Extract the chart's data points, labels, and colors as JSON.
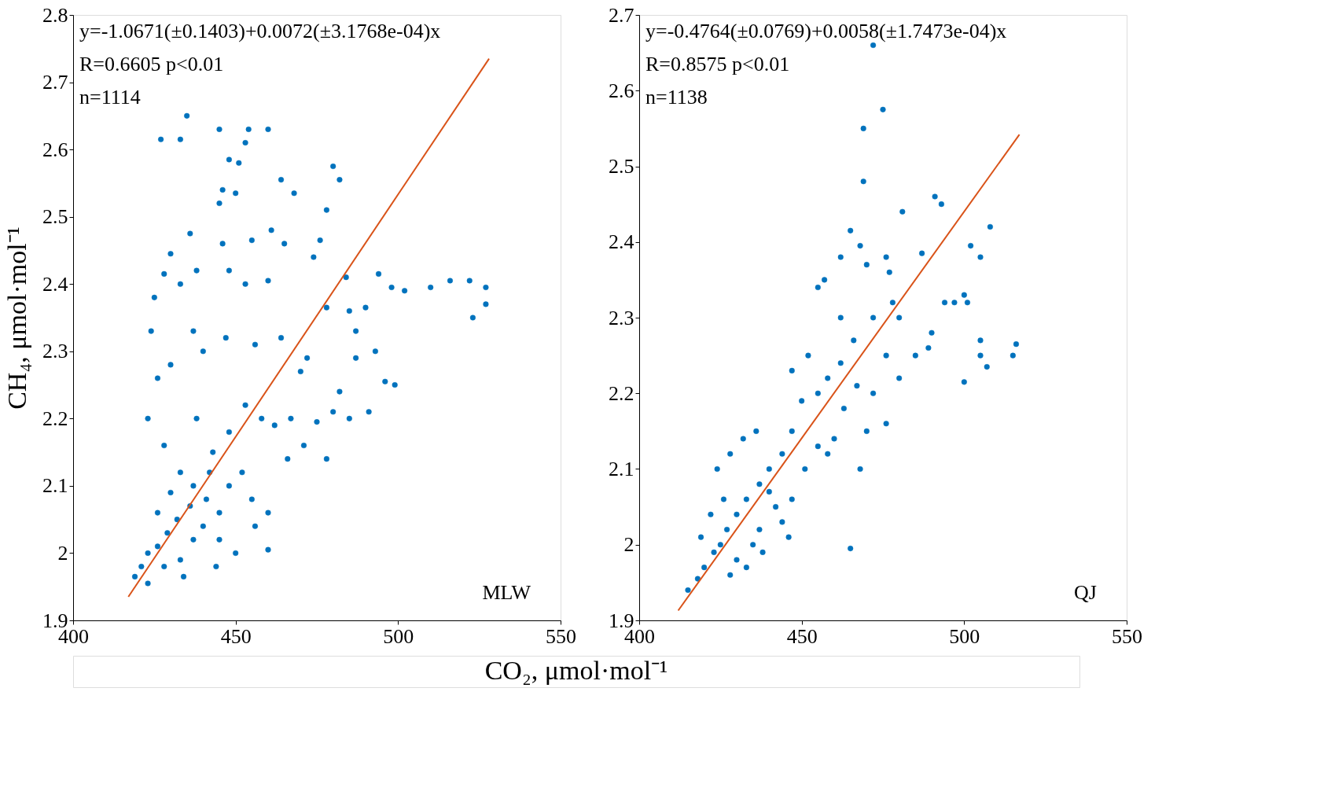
{
  "chart_data": [
    {
      "type": "scatter",
      "xlabel": "CO₂, μmol·mol⁻¹",
      "ylabel": "CH₄, μmol·mol⁻¹",
      "xlim": [
        400,
        550
      ],
      "ylim": [
        1.9,
        2.8
      ],
      "xticks": [
        400,
        450,
        500,
        550
      ],
      "yticks": [
        1.9,
        2,
        2.1,
        2.2,
        2.3,
        2.4,
        2.5,
        2.6,
        2.7,
        2.8
      ],
      "grid": false,
      "marker": "circle",
      "annotations": [
        "y=-1.0671(±0.1403)+0.0072(±3.1768e-04)x",
        "R=0.6605 p<0.01",
        "n=1114",
        "MLW"
      ],
      "series": [
        {
          "color": "#0072bd",
          "x": [
            435,
            427,
            433,
            445,
            454,
            460,
            448,
            451,
            453,
            480,
            482,
            464,
            446,
            450,
            445,
            468,
            478,
            436,
            430,
            446,
            455,
            461,
            465,
            428,
            438,
            448,
            425,
            433,
            453,
            460,
            474,
            476,
            484,
            494,
            498,
            502,
            510,
            516,
            522,
            527,
            523,
            527,
            478,
            485,
            490,
            487,
            493,
            496,
            499,
            491,
            485,
            480,
            478,
            471,
            466,
            470,
            472,
            464,
            456,
            447,
            440,
            437,
            430,
            426,
            424,
            423,
            428,
            433,
            438,
            443,
            448,
            453,
            458,
            462,
            467,
            475,
            482,
            487,
            448,
            452,
            455,
            460,
            445,
            440,
            436,
            432,
            429,
            426,
            423,
            421,
            419,
            423,
            428,
            433,
            437,
            441,
            445,
            450,
            444,
            434,
            456,
            460,
            437,
            442,
            430,
            426
          ],
          "values": [
            2.65,
            2.615,
            2.615,
            2.63,
            2.63,
            2.63,
            2.585,
            2.58,
            2.61,
            2.575,
            2.555,
            2.555,
            2.54,
            2.535,
            2.52,
            2.535,
            2.51,
            2.475,
            2.445,
            2.46,
            2.465,
            2.48,
            2.46,
            2.415,
            2.42,
            2.42,
            2.38,
            2.4,
            2.4,
            2.405,
            2.44,
            2.465,
            2.41,
            2.415,
            2.395,
            2.39,
            2.395,
            2.405,
            2.405,
            2.395,
            2.35,
            2.37,
            2.365,
            2.36,
            2.365,
            2.33,
            2.3,
            2.255,
            2.25,
            2.21,
            2.2,
            2.21,
            2.14,
            2.16,
            2.14,
            2.27,
            2.29,
            2.32,
            2.31,
            2.32,
            2.3,
            2.33,
            2.28,
            2.26,
            2.33,
            2.2,
            2.16,
            2.12,
            2.2,
            2.15,
            2.18,
            2.22,
            2.2,
            2.19,
            2.2,
            2.195,
            2.24,
            2.29,
            2.1,
            2.12,
            2.08,
            2.06,
            2.06,
            2.04,
            2.07,
            2.05,
            2.03,
            2.01,
            2.0,
            1.98,
            1.965,
            1.955,
            1.98,
            1.99,
            2.02,
            2.08,
            2.02,
            2.0,
            1.98,
            1.965,
            2.04,
            2.005,
            2.1,
            2.12,
            2.09,
            2.06
          ]
        },
        {
          "type": "line",
          "marker": "none",
          "color": "#d95319",
          "x": [
            417,
            528
          ],
          "values": [
            1.935,
            2.735
          ]
        }
      ]
    },
    {
      "type": "scatter",
      "xlim": [
        400,
        550
      ],
      "ylim": [
        1.9,
        2.7
      ],
      "xticks": [
        400,
        450,
        500,
        550
      ],
      "yticks": [
        1.9,
        2,
        2.1,
        2.2,
        2.3,
        2.4,
        2.5,
        2.6,
        2.7
      ],
      "grid": false,
      "marker": "circle",
      "annotations": [
        "y=-0.4764(±0.0769)+0.0058(±1.7473e-04)x",
        "R=0.8575 p<0.01",
        "n=1138",
        "QJ"
      ],
      "series": [
        {
          "color": "#0072bd",
          "x": [
            465,
            475,
            469,
            469,
            472,
            465,
            468,
            470,
            462,
            457,
            455,
            481,
            476,
            477,
            487,
            491,
            493,
            502,
            508,
            505,
            500,
            497,
            501,
            505,
            507,
            515,
            516,
            505,
            500,
            494,
            490,
            489,
            485,
            480,
            476,
            470,
            468,
            472,
            476,
            480,
            478,
            472,
            466,
            462,
            458,
            455,
            450,
            447,
            444,
            447,
            452,
            440,
            437,
            433,
            430,
            427,
            425,
            423,
            420,
            418,
            415,
            428,
            432,
            436,
            424,
            440,
            444,
            446,
            438,
            433,
            428,
            422,
            426,
            435,
            442,
            451,
            455,
            460,
            463,
            467,
            458,
            447,
            437,
            430,
            419,
            462
          ],
          "values": [
            1.995,
            2.575,
            2.55,
            2.48,
            2.66,
            2.415,
            2.395,
            2.37,
            2.38,
            2.35,
            2.34,
            2.44,
            2.38,
            2.36,
            2.385,
            2.46,
            2.45,
            2.395,
            2.42,
            2.38,
            2.33,
            2.32,
            2.32,
            2.27,
            2.235,
            2.25,
            2.265,
            2.25,
            2.215,
            2.32,
            2.28,
            2.26,
            2.25,
            2.22,
            2.16,
            2.15,
            2.1,
            2.2,
            2.25,
            2.3,
            2.32,
            2.3,
            2.27,
            2.24,
            2.22,
            2.2,
            2.19,
            2.15,
            2.12,
            2.23,
            2.25,
            2.1,
            2.08,
            2.06,
            2.04,
            2.02,
            2.0,
            1.99,
            1.97,
            1.955,
            1.94,
            2.12,
            2.14,
            2.15,
            2.1,
            2.07,
            2.03,
            2.01,
            1.99,
            1.97,
            1.96,
            2.04,
            2.06,
            2.0,
            2.05,
            2.1,
            2.13,
            2.14,
            2.18,
            2.21,
            2.12,
            2.06,
            2.02,
            1.98,
            2.01,
            2.3
          ]
        },
        {
          "type": "line",
          "marker": "none",
          "color": "#d95319",
          "x": [
            412,
            517
          ],
          "values": [
            1.913,
            2.542
          ]
        }
      ]
    }
  ]
}
